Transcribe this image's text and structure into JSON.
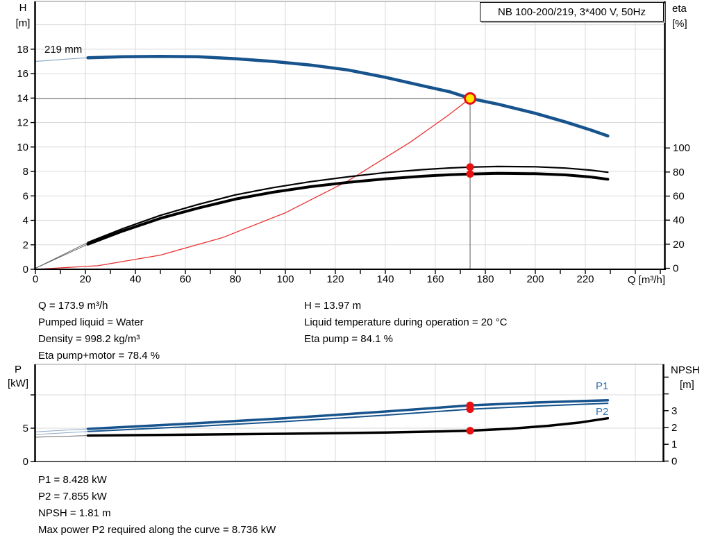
{
  "title_box": {
    "label": "NB 100-200/219, 3*400 V, 50Hz"
  },
  "axis_labels": {
    "h1": "H",
    "h2": "[m]",
    "eta1": "eta",
    "eta2": "[%]",
    "q": "Q [m³/h]",
    "p": "P",
    "p_unit": "[kW]",
    "npsh": "NPSH",
    "npsh_unit": "[m]"
  },
  "chart_labels": {
    "impeller": "219 mm",
    "p1": "P1",
    "p2": "P2"
  },
  "info_top": {
    "left": [
      "Q = 173.9 m³/h",
      "Pumped liquid = Water",
      "Density = 998.2 kg/m³",
      "Eta pump+motor = 78.4 %"
    ],
    "right": [
      "H = 13.97 m",
      "Liquid temperature during operation = 20 °C",
      "Eta pump = 84.1 %"
    ]
  },
  "info_bottom": [
    "P1 = 8.428 kW",
    "P2 = 7.855 kW",
    "NPSH = 1.81 m",
    "Max power P2 required along the curve = 8.736 kW"
  ],
  "colors": {
    "curve_blue": "#17538c",
    "curve_black": "#000000",
    "system_red": "#e93030",
    "lead_blue": "#8ba6c4",
    "lead_gray": "#666666",
    "marker_red": "#e81010",
    "marker_yellow": "#ffe900",
    "grid": "#d9d9d9",
    "guide": "#808080",
    "label_blue": "#2e6fad"
  },
  "duty_point": {
    "q": 173.9,
    "h": 13.97,
    "eta_pump": 84.1,
    "eta_pump_motor": 78.4,
    "p1": 8.428,
    "p2": 7.855,
    "npsh": 1.81
  },
  "chart_data": [
    {
      "type": "line",
      "title": "QH and efficiency curves",
      "xlabel": "Q [m³/h]",
      "ylabel": "H [m]",
      "y2label": "eta [%]",
      "xlim": [
        0,
        252
      ],
      "ylim": [
        0,
        21.9
      ],
      "y2lim": [
        0,
        100
      ],
      "x_tick_labels": [
        0,
        20,
        40,
        60,
        80,
        100,
        120,
        140,
        160,
        180,
        200,
        220
      ],
      "x_tick_minor_step": 10,
      "x_tick_max": 250,
      "y_tick_labels": [
        0,
        2,
        4,
        6,
        8,
        10,
        12,
        14,
        16,
        18
      ],
      "y2_tick_labels": [
        0,
        20,
        40,
        60,
        80,
        100
      ],
      "grid_x": [
        20,
        40,
        60,
        80,
        100,
        120,
        140,
        160,
        180,
        200,
        220,
        240
      ],
      "grid_y": [
        2,
        4,
        6,
        8,
        10,
        12,
        14,
        16,
        18,
        20
      ],
      "legend_position": "none",
      "series": [
        {
          "name": "head-219mm-lead",
          "axis": "H",
          "color_key": "lead_blue",
          "width": 1.2,
          "points": [
            [
              0,
              17.0
            ],
            [
              12,
              17.18
            ],
            [
              21,
              17.3
            ]
          ]
        },
        {
          "name": "head-219mm",
          "axis": "H",
          "color_key": "curve_blue",
          "width": 4.5,
          "points": [
            [
              21,
              17.3
            ],
            [
              35,
              17.38
            ],
            [
              50,
              17.41
            ],
            [
              65,
              17.38
            ],
            [
              80,
              17.22
            ],
            [
              95,
              17.0
            ],
            [
              110,
              16.7
            ],
            [
              125,
              16.3
            ],
            [
              140,
              15.7
            ],
            [
              155,
              15.0
            ],
            [
              166,
              14.5
            ],
            [
              173.9,
              13.97
            ],
            [
              185,
              13.5
            ],
            [
              200,
              12.75
            ],
            [
              212,
              12.05
            ],
            [
              222,
              11.4
            ],
            [
              229,
              10.9
            ]
          ]
        },
        {
          "name": "system-curve",
          "axis": "H",
          "color_key": "system_red",
          "width": 1.3,
          "points": [
            [
              0,
              0
            ],
            [
              25,
              0.29
            ],
            [
              50,
              1.16
            ],
            [
              75,
              2.6
            ],
            [
              100,
              4.62
            ],
            [
              125,
              7.22
            ],
            [
              150,
              10.4
            ],
            [
              165,
              12.57
            ],
            [
              173.9,
              13.97
            ]
          ]
        },
        {
          "name": "eta-pump-lead",
          "axis": "eta",
          "color_key": "lead_gray",
          "width": 1,
          "points": [
            [
              0,
              0
            ],
            [
              21,
              21.5
            ]
          ]
        },
        {
          "name": "eta-pump",
          "axis": "eta",
          "color_key": "curve_black",
          "width": 2.2,
          "points": [
            [
              21,
              21.5
            ],
            [
              35,
              33
            ],
            [
              50,
              44
            ],
            [
              65,
              53
            ],
            [
              80,
              61
            ],
            [
              95,
              67
            ],
            [
              110,
              72
            ],
            [
              125,
              76
            ],
            [
              140,
              79.5
            ],
            [
              155,
              82
            ],
            [
              166,
              83.4
            ],
            [
              173.9,
              84.1
            ],
            [
              185,
              84.6
            ],
            [
              200,
              84.4
            ],
            [
              212,
              83.3
            ],
            [
              222,
              81.6
            ],
            [
              229,
              79.8
            ]
          ]
        },
        {
          "name": "eta-pump-motor-lead",
          "axis": "eta",
          "color_key": "lead_gray",
          "width": 1,
          "points": [
            [
              0,
              0
            ],
            [
              21,
              20
            ]
          ]
        },
        {
          "name": "eta-pump-motor",
          "axis": "eta",
          "color_key": "curve_black",
          "width": 4,
          "points": [
            [
              21,
              20
            ],
            [
              35,
              31
            ],
            [
              50,
              41.5
            ],
            [
              65,
              50
            ],
            [
              80,
              57.5
            ],
            [
              95,
              63.2
            ],
            [
              110,
              67.8
            ],
            [
              125,
              71.4
            ],
            [
              140,
              74.3
            ],
            [
              155,
              76.5
            ],
            [
              166,
              77.8
            ],
            [
              173.9,
              78.4
            ],
            [
              185,
              78.9
            ],
            [
              200,
              78.6
            ],
            [
              212,
              77.6
            ],
            [
              222,
              75.9
            ],
            [
              229,
              74.0
            ]
          ]
        }
      ],
      "markers": [
        {
          "name": "duty-point-qh",
          "q": 173.9,
          "axis": "H",
          "v": 13.97,
          "style": "yellow"
        },
        {
          "name": "duty-point-eta-pump",
          "q": 173.9,
          "axis": "eta",
          "v": 84.1,
          "style": "red"
        },
        {
          "name": "duty-point-eta-pump-motor",
          "q": 173.9,
          "axis": "eta",
          "v": 78.4,
          "style": "red"
        }
      ],
      "guides": {
        "h_value": 13.97,
        "q_value": 173.9
      }
    },
    {
      "type": "line",
      "title": "Power and NPSH curves",
      "xlabel": "",
      "ylabel": "P [kW]",
      "y2label": "NPSH [m]",
      "xlim": [
        0,
        251
      ],
      "ylim": [
        0,
        14.6
      ],
      "y2lim": [
        0,
        5.8
      ],
      "y_ticks": [
        0,
        5,
        10
      ],
      "y_tick_labels": [
        0,
        5
      ],
      "y2_ticks": [
        0,
        1,
        2,
        3,
        4,
        5
      ],
      "y2_tick_labels": [
        0,
        1,
        2,
        3
      ],
      "grid_x": [
        20,
        40,
        60,
        80,
        100,
        120,
        140,
        160,
        180,
        200,
        220,
        240
      ],
      "grid_y": [
        5,
        10
      ],
      "legend_position": "inline-right",
      "series": [
        {
          "name": "p1-lead",
          "axis": "P",
          "color_key": "lead_blue",
          "width": 1,
          "points": [
            [
              0,
              4.45
            ],
            [
              21,
              4.9
            ]
          ]
        },
        {
          "name": "p1",
          "axis": "P",
          "color_key": "curve_blue",
          "width": 3.5,
          "points": [
            [
              21,
              4.9
            ],
            [
              60,
              5.65
            ],
            [
              100,
              6.5
            ],
            [
              140,
              7.5
            ],
            [
              173.9,
              8.428
            ],
            [
              200,
              8.85
            ],
            [
              229,
              9.2
            ]
          ]
        },
        {
          "name": "p2-lead",
          "axis": "P",
          "color_key": "lead_blue",
          "width": 1,
          "points": [
            [
              0,
              4.05
            ],
            [
              21,
              4.5
            ]
          ]
        },
        {
          "name": "p2",
          "axis": "P",
          "color_key": "curve_blue",
          "width": 2,
          "points": [
            [
              21,
              4.5
            ],
            [
              60,
              5.2
            ],
            [
              100,
              6.0
            ],
            [
              140,
              6.95
            ],
            [
              173.9,
              7.855
            ],
            [
              200,
              8.3
            ],
            [
              229,
              8.736
            ]
          ]
        },
        {
          "name": "npsh-lead",
          "axis": "NPSH",
          "color_key": "lead_gray",
          "width": 1,
          "points": [
            [
              0,
              1.42
            ],
            [
              21,
              1.52
            ]
          ]
        },
        {
          "name": "npsh",
          "axis": "NPSH",
          "color_key": "curve_black",
          "width": 3.5,
          "points": [
            [
              21,
              1.52
            ],
            [
              60,
              1.57
            ],
            [
              100,
              1.63
            ],
            [
              140,
              1.7
            ],
            [
              160,
              1.76
            ],
            [
              173.9,
              1.81
            ],
            [
              190,
              1.93
            ],
            [
              205,
              2.1
            ],
            [
              218,
              2.3
            ],
            [
              229,
              2.55
            ]
          ]
        }
      ],
      "markers": [
        {
          "name": "duty-point-p1",
          "q": 173.9,
          "axis": "P",
          "v": 8.428,
          "style": "red"
        },
        {
          "name": "duty-point-p2",
          "q": 173.9,
          "axis": "P",
          "v": 7.855,
          "style": "red"
        },
        {
          "name": "duty-point-npsh",
          "q": 173.9,
          "axis": "NPSH",
          "v": 1.81,
          "style": "red"
        }
      ]
    }
  ]
}
